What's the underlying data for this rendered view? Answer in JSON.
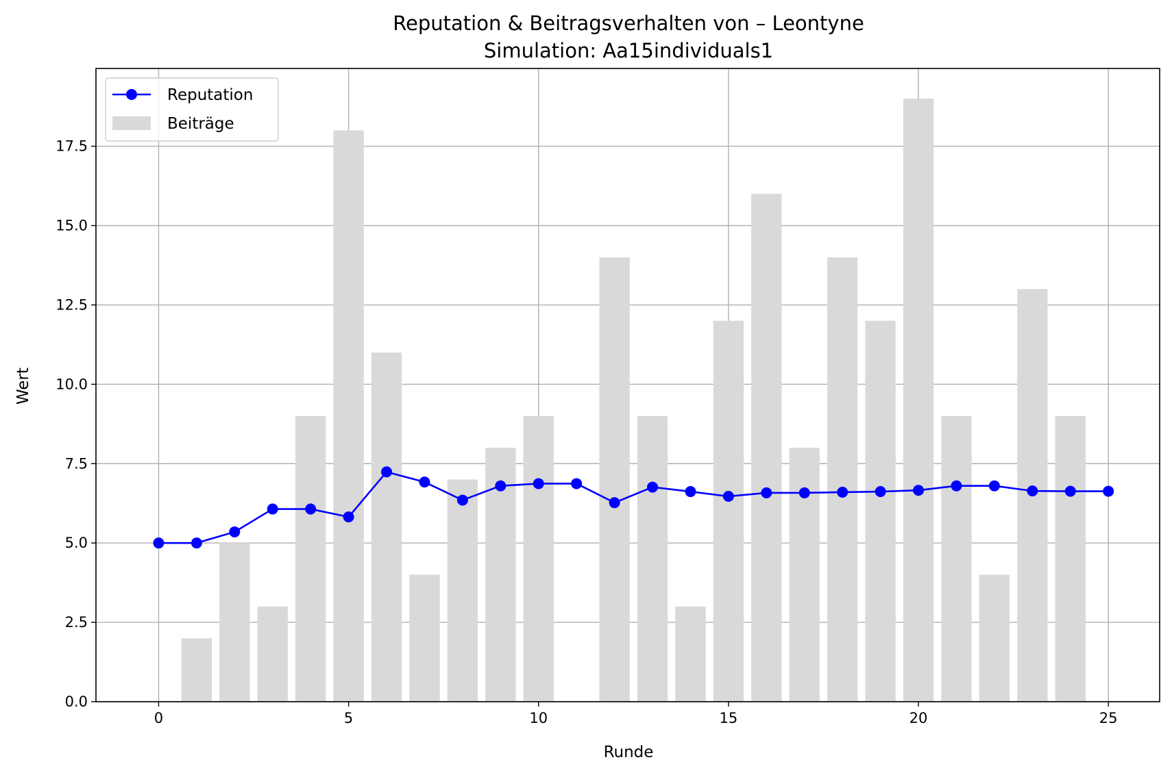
{
  "chart_data": {
    "type": "bar",
    "title": "Reputation & Beitragsverhalten von – Leontyne",
    "subtitle": "Simulation: Aa15individuals1",
    "xlabel": "Runde",
    "ylabel": "Wert",
    "xlim": [
      -1.65,
      26.35
    ],
    "ylim": [
      0,
      19.95
    ],
    "xticks": [
      0,
      5,
      10,
      15,
      20,
      25
    ],
    "yticks": [
      0.0,
      2.5,
      5.0,
      7.5,
      10.0,
      12.5,
      15.0,
      17.5
    ],
    "ytick_labels": [
      "0.0",
      "2.5",
      "5.0",
      "7.5",
      "10.0",
      "12.5",
      "15.0",
      "17.5"
    ],
    "grid": true,
    "legend_position": "upper-left",
    "series": [
      {
        "name": "Beiträge",
        "kind": "bar",
        "color": "#d9d9d9",
        "x": [
          1,
          2,
          3,
          4,
          5,
          6,
          7,
          8,
          9,
          10,
          11,
          12,
          13,
          14,
          15,
          16,
          17,
          18,
          19,
          20,
          21,
          22,
          23,
          24
        ],
        "values": [
          2,
          5,
          3,
          9,
          18,
          11,
          4,
          7,
          8,
          9,
          0,
          14,
          9,
          3,
          12,
          16,
          8,
          14,
          12,
          19,
          9,
          4,
          13,
          9
        ]
      },
      {
        "name": "Reputation",
        "kind": "line",
        "color": "#0000ff",
        "x": [
          0,
          1,
          2,
          3,
          4,
          5,
          6,
          7,
          8,
          9,
          10,
          11,
          12,
          13,
          14,
          15,
          16,
          17,
          18,
          19,
          20,
          21,
          22,
          23,
          24,
          25
        ],
        "values": [
          5.0,
          5.0,
          5.35,
          6.07,
          6.07,
          5.82,
          7.24,
          6.92,
          6.35,
          6.8,
          6.87,
          6.87,
          6.27,
          6.76,
          6.62,
          6.47,
          6.58,
          6.58,
          6.6,
          6.62,
          6.66,
          6.8,
          6.8,
          6.64,
          6.63,
          6.63
        ]
      }
    ]
  }
}
